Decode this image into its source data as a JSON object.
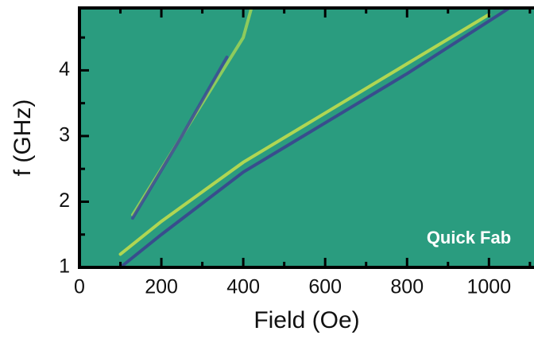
{
  "chart_data": {
    "type": "line",
    "x_label": "Field (Oe)",
    "y_label": "f (GHz)",
    "annotation": "Quick Fab",
    "background": "#2a9c7f",
    "xlim": [
      0,
      1110
    ],
    "ylim": [
      1,
      4.95
    ],
    "xticks": [
      0,
      200,
      400,
      600,
      800,
      1000
    ],
    "yticks": [
      1,
      2,
      3,
      4
    ],
    "xminor": [
      100,
      300,
      500,
      700,
      900,
      1100
    ],
    "yminor": [
      1.5,
      2.5,
      3.5,
      4.5
    ],
    "series": [
      {
        "color": "#3b3f8f",
        "x": [
          100,
          200,
          400,
          600,
          800,
          1050
        ],
        "values": [
          1.0,
          1.5,
          2.45,
          3.2,
          3.95,
          4.95
        ]
      },
      {
        "color": "#c8e04a",
        "x": [
          100,
          200,
          400,
          600,
          800,
          1000
        ],
        "values": [
          1.2,
          1.7,
          2.6,
          3.35,
          4.1,
          4.85
        ]
      },
      {
        "color": "#9fd356",
        "x": [
          130,
          200,
          300,
          400,
          420
        ],
        "values": [
          1.8,
          2.5,
          3.5,
          4.5,
          4.95
        ]
      },
      {
        "color": "#3d4b95",
        "x": [
          130,
          250,
          360
        ],
        "values": [
          1.75,
          3.0,
          4.2
        ]
      }
    ]
  }
}
